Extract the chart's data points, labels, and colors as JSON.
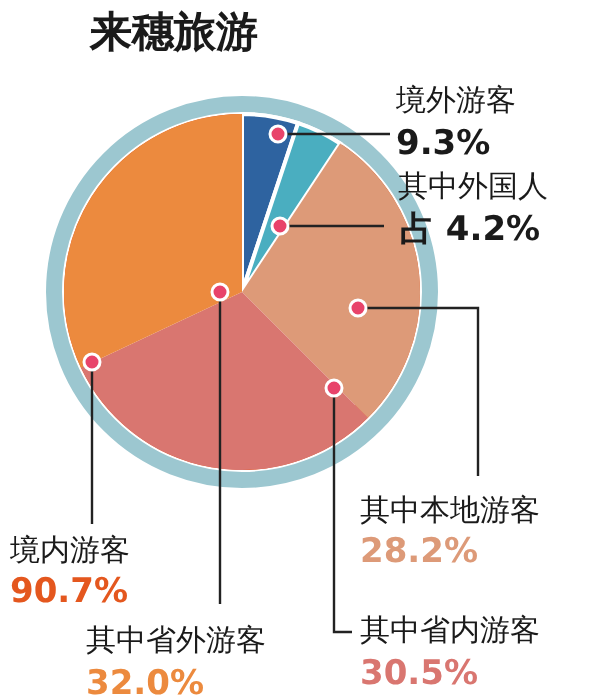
{
  "chart_data": {
    "type": "pie",
    "title": "来穗旅游",
    "categories": [
      null,
      "其中外国人",
      "其中本地游客",
      "其中省内游客",
      "其中省外游客"
    ],
    "values": [
      5.1,
      4.2,
      28.2,
      30.5,
      32.0
    ],
    "colors": [
      "#2e63a0",
      "#4aaec0",
      "#dd9a78",
      "#d97670",
      "#ec8a3e"
    ],
    "value_labels": [
      null,
      "占 4.2%",
      "28.2%",
      "30.5%",
      "32.0%"
    ],
    "annotations": [
      "境外游客",
      "9.3%",
      "境内游客",
      "90.7%"
    ]
  }
}
